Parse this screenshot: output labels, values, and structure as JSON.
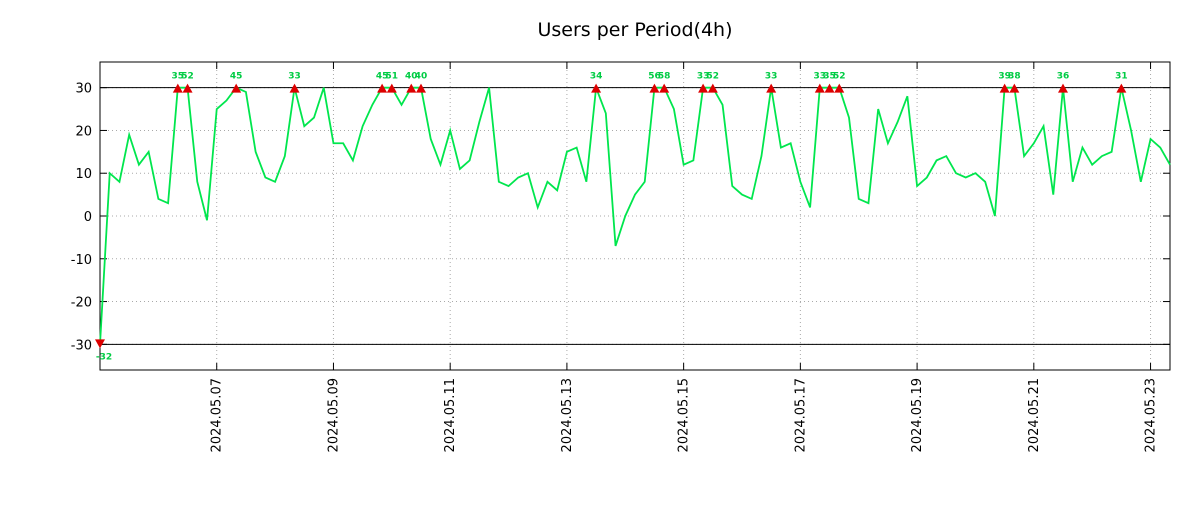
{
  "chart_data": {
    "type": "line",
    "title": "Users per Period(4h)",
    "series_name": "users",
    "period": "4h",
    "values": [
      -32,
      10,
      8,
      19,
      12,
      15,
      4,
      3,
      35,
      52,
      8,
      -1,
      25,
      27,
      45,
      29,
      15,
      9,
      8,
      14,
      33,
      21,
      23,
      30,
      17,
      17,
      13,
      21,
      26,
      45,
      51,
      26,
      40,
      40,
      18,
      12,
      20,
      11,
      13,
      22,
      30,
      8,
      7,
      9,
      10,
      2,
      8,
      6,
      15,
      16,
      8,
      34,
      24,
      -7,
      0,
      5,
      8,
      56,
      58,
      25,
      12,
      13,
      33,
      52,
      26,
      7,
      5,
      4,
      14,
      33,
      16,
      17,
      8,
      2,
      33,
      35,
      52,
      23,
      4,
      3,
      25,
      17,
      22,
      28,
      7,
      9,
      13,
      14,
      10,
      9,
      10,
      8,
      0,
      39,
      38,
      14,
      17,
      21,
      5,
      36,
      8,
      16,
      12,
      14,
      15,
      31,
      20,
      8,
      18,
      16,
      12
    ],
    "clip_max": 30,
    "clip_min": -30,
    "y_ticks": [
      30,
      20,
      10,
      0,
      -10,
      -20,
      -30
    ],
    "ylim": [
      -36,
      36
    ],
    "x_ticks": [
      {
        "label": "2024.05.07",
        "index": 12
      },
      {
        "label": "2024.05.09",
        "index": 24
      },
      {
        "label": "2024.05.11",
        "index": 36
      },
      {
        "label": "2024.05.13",
        "index": 48
      },
      {
        "label": "2024.05.15",
        "index": 60
      },
      {
        "label": "2024.05.17",
        "index": 72
      },
      {
        "label": "2024.05.19",
        "index": 84
      },
      {
        "label": "2024.05.21",
        "index": 96
      },
      {
        "label": "2024.05.23",
        "index": 108
      }
    ],
    "grid": true,
    "legend": "none",
    "colors": {
      "line": "#00e64d",
      "marker": "#dd0000",
      "peak_label": "#00cc44",
      "grid": "#a9a9a9",
      "axis": "#000000",
      "background": "#ffffff"
    }
  }
}
